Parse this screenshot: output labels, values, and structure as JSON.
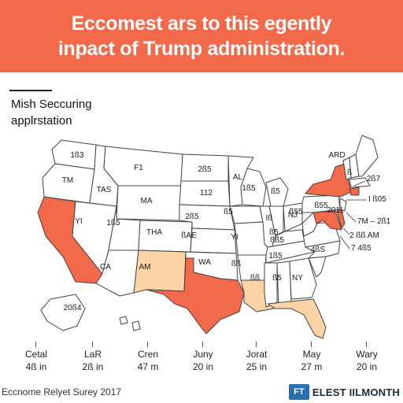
{
  "title": {
    "line1": "Eccomest ars to this egently",
    "line2": "inpact of Trump administration."
  },
  "subtitle": {
    "line1": "Mish Seccuring",
    "line2": "applrstation"
  },
  "colors": {
    "banner": "#f36a4a",
    "high": "#f36a4a",
    "low": "#fcd3a5",
    "base": "#ffffff",
    "border": "#444444"
  },
  "map": {
    "highlighted_high": [
      "California",
      "Texas",
      "New York",
      "Maryland",
      "Delaware"
    ],
    "highlighted_low": [
      "New Mexico",
      "Louisiana",
      "Florida"
    ],
    "labels": {
      "wa": "1ß3",
      "or": "TM",
      "id": "TAS",
      "mt": "F1",
      "nd": "2ß5",
      "mn": "AL",
      "wi": "1ß5",
      "mi": "ß5",
      "nv": "YI",
      "ut": "1ß5",
      "wy": "MA",
      "sd": "112",
      "ia": "ß5",
      "co": "THA",
      "ne": "2ß5",
      "ks": "ßAE",
      "mo": "YI",
      "il": "Iß",
      "in": "ß5",
      "oh": "NJ",
      "az": "CA",
      "nm": "AM",
      "ok": "WA",
      "ar": "ßß",
      "tn": "1ß5",
      "ms": "ßß",
      "al": "ß5",
      "ga": "NY",
      "ky": "ßß5",
      "wv": "ß55",
      "va": "ß55",
      "me": "ARD",
      "nh": "ß",
      "pa": "2011",
      "nc": "4ßS",
      "ak": "20ß4"
    },
    "callouts": [
      "2ß7",
      "I ß05",
      "7M – 2ß1",
      "2 ßß AM",
      "7 4ß5"
    ]
  },
  "legend": [
    {
      "label": "Cetal",
      "value": "4ß in"
    },
    {
      "label": "LaR",
      "value": "2ß in"
    },
    {
      "label": "Cren",
      "value": "47 m"
    },
    {
      "label": "Juny",
      "value": "20 in"
    },
    {
      "label": "Jorat",
      "value": "25 in"
    },
    {
      "label": "May",
      "value": "27 m"
    },
    {
      "label": "Wary",
      "value": "20 in"
    }
  ],
  "footer": {
    "source": "Eccnome Relyet Surey 2017",
    "logo_text": "FT",
    "brand": "ELEST IILMONTH"
  }
}
